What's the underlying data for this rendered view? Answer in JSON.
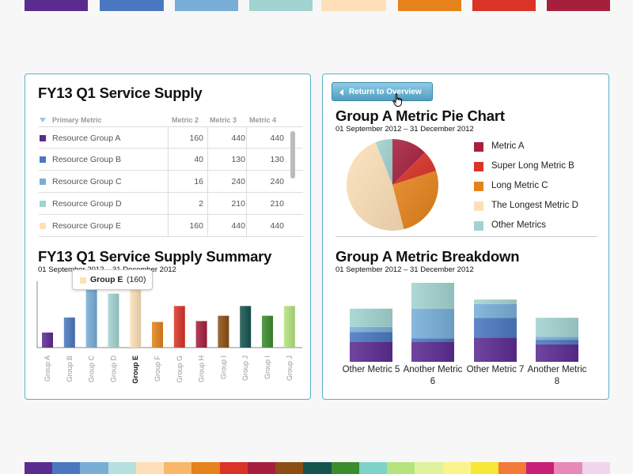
{
  "palette": {
    "top": [
      "#5b2c90",
      "#4a78c0",
      "#78aed8",
      "#a2d3d0",
      "#fde0b8",
      "#e5821c",
      "#da3328",
      "#a6203e"
    ],
    "bottom": [
      "#5b2c90",
      "#4a78c0",
      "#78aed8",
      "#b6e0dd",
      "#fde0b8",
      "#f9b76b",
      "#e5821c",
      "#da3328",
      "#a6203e",
      "#8c4f13",
      "#15544f",
      "#3b8c2c",
      "#7fd2c8",
      "#b5e37e",
      "#e0f29e",
      "#fdf38e",
      "#f7e838",
      "#f27a3a",
      "#c81f78",
      "#e88ab8",
      "#f1d5ee"
    ]
  },
  "left_panel": {
    "title": "FY13 Q1 Service Supply",
    "table": {
      "headers": [
        "Primary Metric",
        "Metric 2",
        "Metric 3",
        "Metric 4"
      ],
      "rows": [
        {
          "label": "Resource Group A",
          "color": "#5b2c90",
          "m2": "160",
          "m3": "440",
          "m4": "440"
        },
        {
          "label": "Resource Group B",
          "color": "#4a78c0",
          "m2": "40",
          "m3": "130",
          "m4": "130"
        },
        {
          "label": "Resource Group C",
          "color": "#78aed8",
          "m2": "16",
          "m3": "240",
          "m4": "240"
        },
        {
          "label": "Resource Group D",
          "color": "#a2d3d0",
          "m2": "2",
          "m3": "210",
          "m4": "210"
        },
        {
          "label": "Resource Group E",
          "color": "#fde0b8",
          "m2": "160",
          "m3": "440",
          "m4": "440"
        }
      ]
    },
    "summary_title": "FY13 Q1 Service Supply Summary",
    "summary_subtitle": "01 September 2012 – 31 December 2012",
    "tooltip": {
      "label": "Group E",
      "value": "(160)",
      "color": "#fde0b8"
    }
  },
  "right_panel": {
    "return_button": "Return to Overview",
    "pie_title": "Group A Metric Pie Chart",
    "pie_subtitle": "01 September 2012 – 31 December 2012",
    "breakdown_title": "Group A Metric Breakdown",
    "breakdown_subtitle": "01 September 2012 – 31 December 2012",
    "cursor_icon": "hand-pointer-icon"
  },
  "chart_data": [
    {
      "type": "bar",
      "title": "FY13 Q1 Service Supply Summary",
      "subtitle": "01 September 2012 – 31 December 2012",
      "categories": [
        "Group A",
        "Group B",
        "Group C",
        "Group D",
        "Group E",
        "Group F",
        "Group G",
        "Group H",
        "Group I",
        "Group J",
        "Group I",
        "Group J"
      ],
      "values": [
        17,
        34,
        73,
        61,
        67,
        29,
        47,
        30,
        36,
        47,
        36,
        47
      ],
      "colors": [
        "#5b2c90",
        "#4a78c0",
        "#78aed8",
        "#a2d3d0",
        "#fde0b8",
        "#e5821c",
        "#da3328",
        "#a6203e",
        "#8c4f13",
        "#15544f",
        "#3b8c2c",
        "#b5e37e"
      ],
      "highlighted": "Group E",
      "ylim": [
        0,
        75
      ]
    },
    {
      "type": "pie",
      "title": "Group A Metric Pie Chart",
      "subtitle": "01 September 2012 – 31 December 2012",
      "labels": [
        "Metric A",
        "Super Long Metric B",
        "Long Metric C",
        "The Longest Metric D",
        "Other Metrics"
      ],
      "values": [
        12.5,
        7.5,
        26,
        48,
        6
      ],
      "colors": [
        "#a6203e",
        "#da3328",
        "#e5821c",
        "#fde0b8",
        "#a2d3d0"
      ],
      "legend": "right"
    },
    {
      "type": "bar",
      "stacked": true,
      "title": "Group A Metric Breakdown",
      "subtitle": "01 September 2012 – 31 December 2012",
      "categories": [
        "Other Metric 5",
        "Another Metric 6",
        "Other Metric 7",
        "Another Metric 8"
      ],
      "series": [
        {
          "color": "#5b2c90",
          "values": [
            26,
            26,
            32,
            23
          ]
        },
        {
          "color": "#4a78c0",
          "values": [
            13,
            5,
            26,
            6
          ]
        },
        {
          "color": "#78aed8",
          "values": [
            7,
            39,
            18,
            4
          ]
        },
        {
          "color": "#a2d3d0",
          "values": [
            24,
            34,
            6,
            25
          ]
        }
      ],
      "ylim": [
        0,
        104
      ]
    }
  ]
}
